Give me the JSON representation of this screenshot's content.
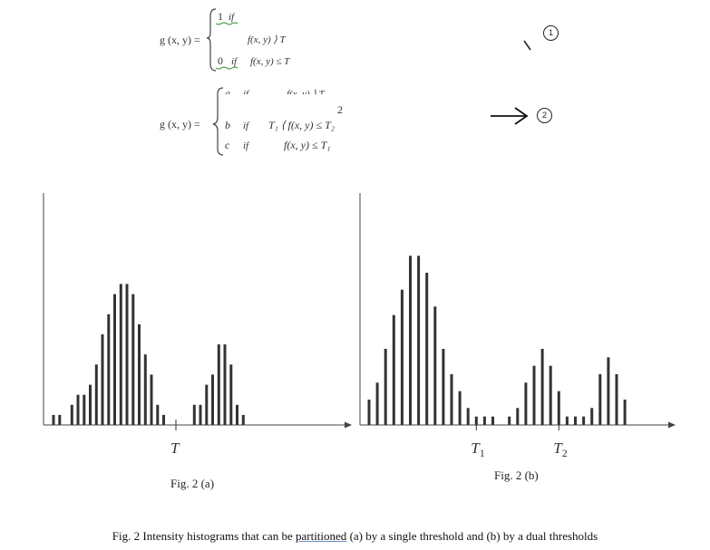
{
  "equation1": {
    "lhs": "g (x, y) =",
    "case1_val": "1",
    "case1_if": "if",
    "case1_cond": "f(x, y) ⟩ T",
    "case2_val": "0",
    "case2_if": "if",
    "case2_cond": "f(x, y) ≤ T",
    "marker": "1"
  },
  "equation2": {
    "lhs": "g (x, y) =",
    "case_a_val": "a",
    "case_a_if": "if",
    "case_a_cond": "f(x, y) ⟩ T",
    "case_a_sub": "2",
    "case_b_val": "b",
    "case_b_if": "if",
    "case_b_cond": "T₁ ⟨ f(x, y) ≤ T₂",
    "case_c_val": "c",
    "case_c_if": "if",
    "case_c_cond": "f(x, y) ≤ T₁",
    "marker": "2"
  },
  "chart_data": [
    {
      "type": "bar",
      "title": "Fig. 2 (a)",
      "threshold_labels": [
        "T"
      ],
      "thresholds_bin": [
        20
      ],
      "values": [
        1,
        1,
        0,
        2,
        3,
        3,
        4,
        6,
        9,
        11,
        13,
        14,
        14,
        13,
        10,
        7,
        5,
        2,
        1,
        0,
        0,
        0,
        0,
        2,
        2,
        4,
        5,
        8,
        8,
        6,
        2,
        1
      ],
      "ylim": [
        0,
        18
      ]
    },
    {
      "type": "bar",
      "title": "Fig. 2 (b)",
      "threshold_labels": [
        "T",
        "1",
        "T",
        "2"
      ],
      "thresholds_bin": [
        13,
        23
      ],
      "values": [
        3,
        5,
        9,
        13,
        16,
        20,
        20,
        18,
        14,
        9,
        6,
        4,
        2,
        1,
        1,
        1,
        0,
        1,
        2,
        5,
        7,
        9,
        7,
        4,
        1,
        1,
        1,
        2,
        6,
        8,
        6,
        3
      ],
      "ylim": [
        0,
        24
      ]
    }
  ],
  "caption": {
    "before": "Fig. 2 Intensity histograms that can be ",
    "underlined": "partitioned",
    "after": "  (a) by a single threshold and (b) by a dual thresholds"
  }
}
